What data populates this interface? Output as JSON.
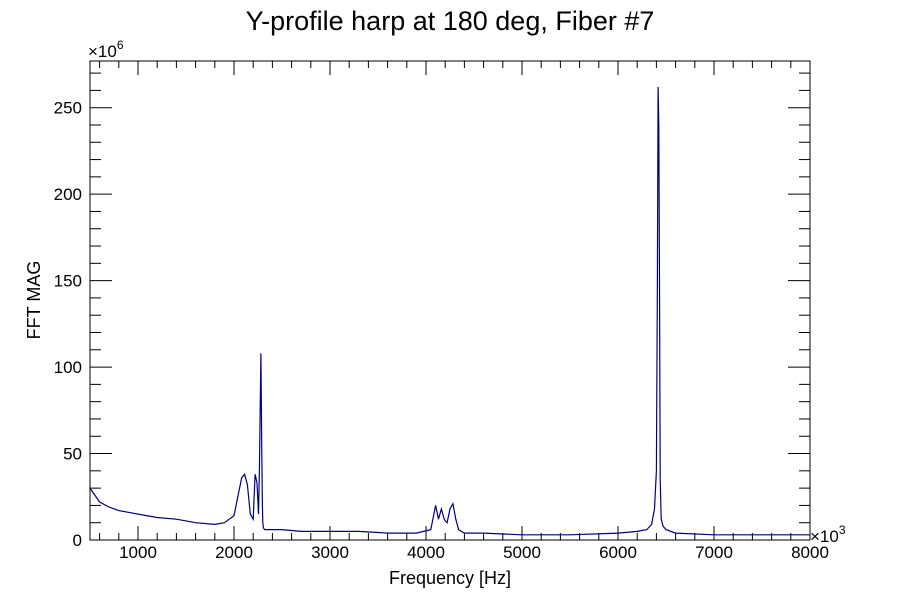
{
  "chart_data": {
    "type": "line",
    "title": "Y-profile harp at 180 deg, Fiber #7",
    "xlabel": "Frequency [Hz]",
    "ylabel": "FFT MAG",
    "x_multiplier": "×10",
    "x_multiplier_exp": "3",
    "y_multiplier": "×10",
    "y_multiplier_exp": "6",
    "xlim": [
      500,
      8000
    ],
    "ylim": [
      0,
      277
    ],
    "x_ticks": [
      1000,
      2000,
      3000,
      4000,
      5000,
      6000,
      7000,
      8000
    ],
    "x_tick_labels": [
      "1000",
      "2000",
      "3000",
      "4000",
      "5000",
      "6000",
      "7000",
      "8000"
    ],
    "y_ticks": [
      0,
      50,
      100,
      150,
      200,
      250
    ],
    "y_tick_labels": [
      "0",
      "50",
      "100",
      "150",
      "200",
      "250"
    ],
    "grid": false,
    "legend": "none",
    "line_color": "#000080",
    "series": [
      {
        "x": [
          500,
          600,
          700,
          800,
          900,
          1000,
          1200,
          1400,
          1600,
          1800,
          1900,
          1950,
          2000,
          2040,
          2080,
          2110,
          2140,
          2170,
          2200,
          2220,
          2240,
          2255,
          2265,
          2280,
          2290,
          2296,
          2300,
          2306,
          2320,
          2400,
          2500,
          2700,
          3000,
          3300,
          3600,
          3900,
          4050,
          4100,
          4130,
          4160,
          4190,
          4220,
          4250,
          4280,
          4310,
          4340,
          4400,
          4600,
          5000,
          5500,
          6000,
          6200,
          6300,
          6350,
          6380,
          6400,
          6410,
          6418,
          6425,
          6432,
          6440,
          6450,
          6470,
          6500,
          6600,
          7000,
          7500,
          8000
        ],
        "y": [
          30,
          22,
          19,
          17,
          16,
          15,
          13,
          12,
          10,
          9,
          10,
          12,
          14,
          25,
          36,
          38,
          32,
          15,
          12,
          38,
          33,
          15,
          40,
          108,
          50,
          20,
          10,
          7,
          6,
          6,
          6,
          5,
          5,
          5,
          4,
          4,
          6,
          20,
          12,
          18,
          12,
          10,
          18,
          21,
          12,
          6,
          4,
          4,
          3,
          3,
          4,
          5,
          6,
          9,
          18,
          40,
          150,
          262,
          240,
          150,
          35,
          12,
          8,
          6,
          4,
          3,
          3,
          3
        ]
      }
    ]
  }
}
